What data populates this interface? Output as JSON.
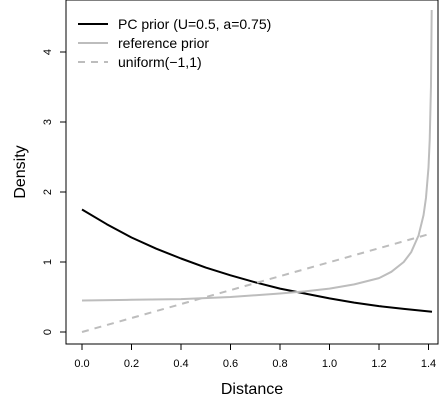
{
  "chart_data": {
    "type": "line",
    "title": "",
    "xlabel": "Distance",
    "ylabel": "Density",
    "xlim": [
      0,
      1.4142
    ],
    "ylim": [
      0,
      4.6
    ],
    "xticks": [
      0.0,
      0.2,
      0.4,
      0.6,
      0.8,
      1.0,
      1.2,
      1.4
    ],
    "xtick_labels": [
      "0.0",
      "0.2",
      "0.4",
      "0.6",
      "0.8",
      "1.0",
      "1.2",
      "1.4"
    ],
    "yticks": [
      0,
      1,
      2,
      3,
      4
    ],
    "ytick_labels": [
      "0",
      "1",
      "2",
      "3",
      "4"
    ],
    "grid": false,
    "legend_position": "top-left",
    "series": [
      {
        "name": "PC prior (U=0.5, a=0.75)",
        "color": "#000000",
        "dash": "solid",
        "x": [
          0.0,
          0.1,
          0.2,
          0.3,
          0.4,
          0.5,
          0.6,
          0.7,
          0.8,
          0.9,
          1.0,
          1.1,
          1.2,
          1.3,
          1.4142
        ],
        "y": [
          1.75,
          1.54,
          1.35,
          1.19,
          1.05,
          0.92,
          0.81,
          0.71,
          0.62,
          0.55,
          0.48,
          0.42,
          0.37,
          0.33,
          0.29
        ]
      },
      {
        "name": "reference prior",
        "color": "#bdbdbd",
        "dash": "solid",
        "x": [
          0.0,
          0.2,
          0.4,
          0.6,
          0.8,
          0.9,
          1.0,
          1.1,
          1.2,
          1.25,
          1.3,
          1.33,
          1.36,
          1.38,
          1.39,
          1.4,
          1.405,
          1.41,
          1.413
        ],
        "y": [
          0.45,
          0.46,
          0.47,
          0.5,
          0.55,
          0.58,
          0.62,
          0.68,
          0.77,
          0.86,
          1.0,
          1.14,
          1.38,
          1.67,
          1.92,
          2.35,
          2.75,
          3.5,
          4.6
        ]
      },
      {
        "name": "uniform(−1,1)",
        "color": "#bdbdbd",
        "dash": "dashed",
        "x": [
          0.0,
          1.4142
        ],
        "y": [
          0.0,
          1.41
        ]
      }
    ]
  }
}
